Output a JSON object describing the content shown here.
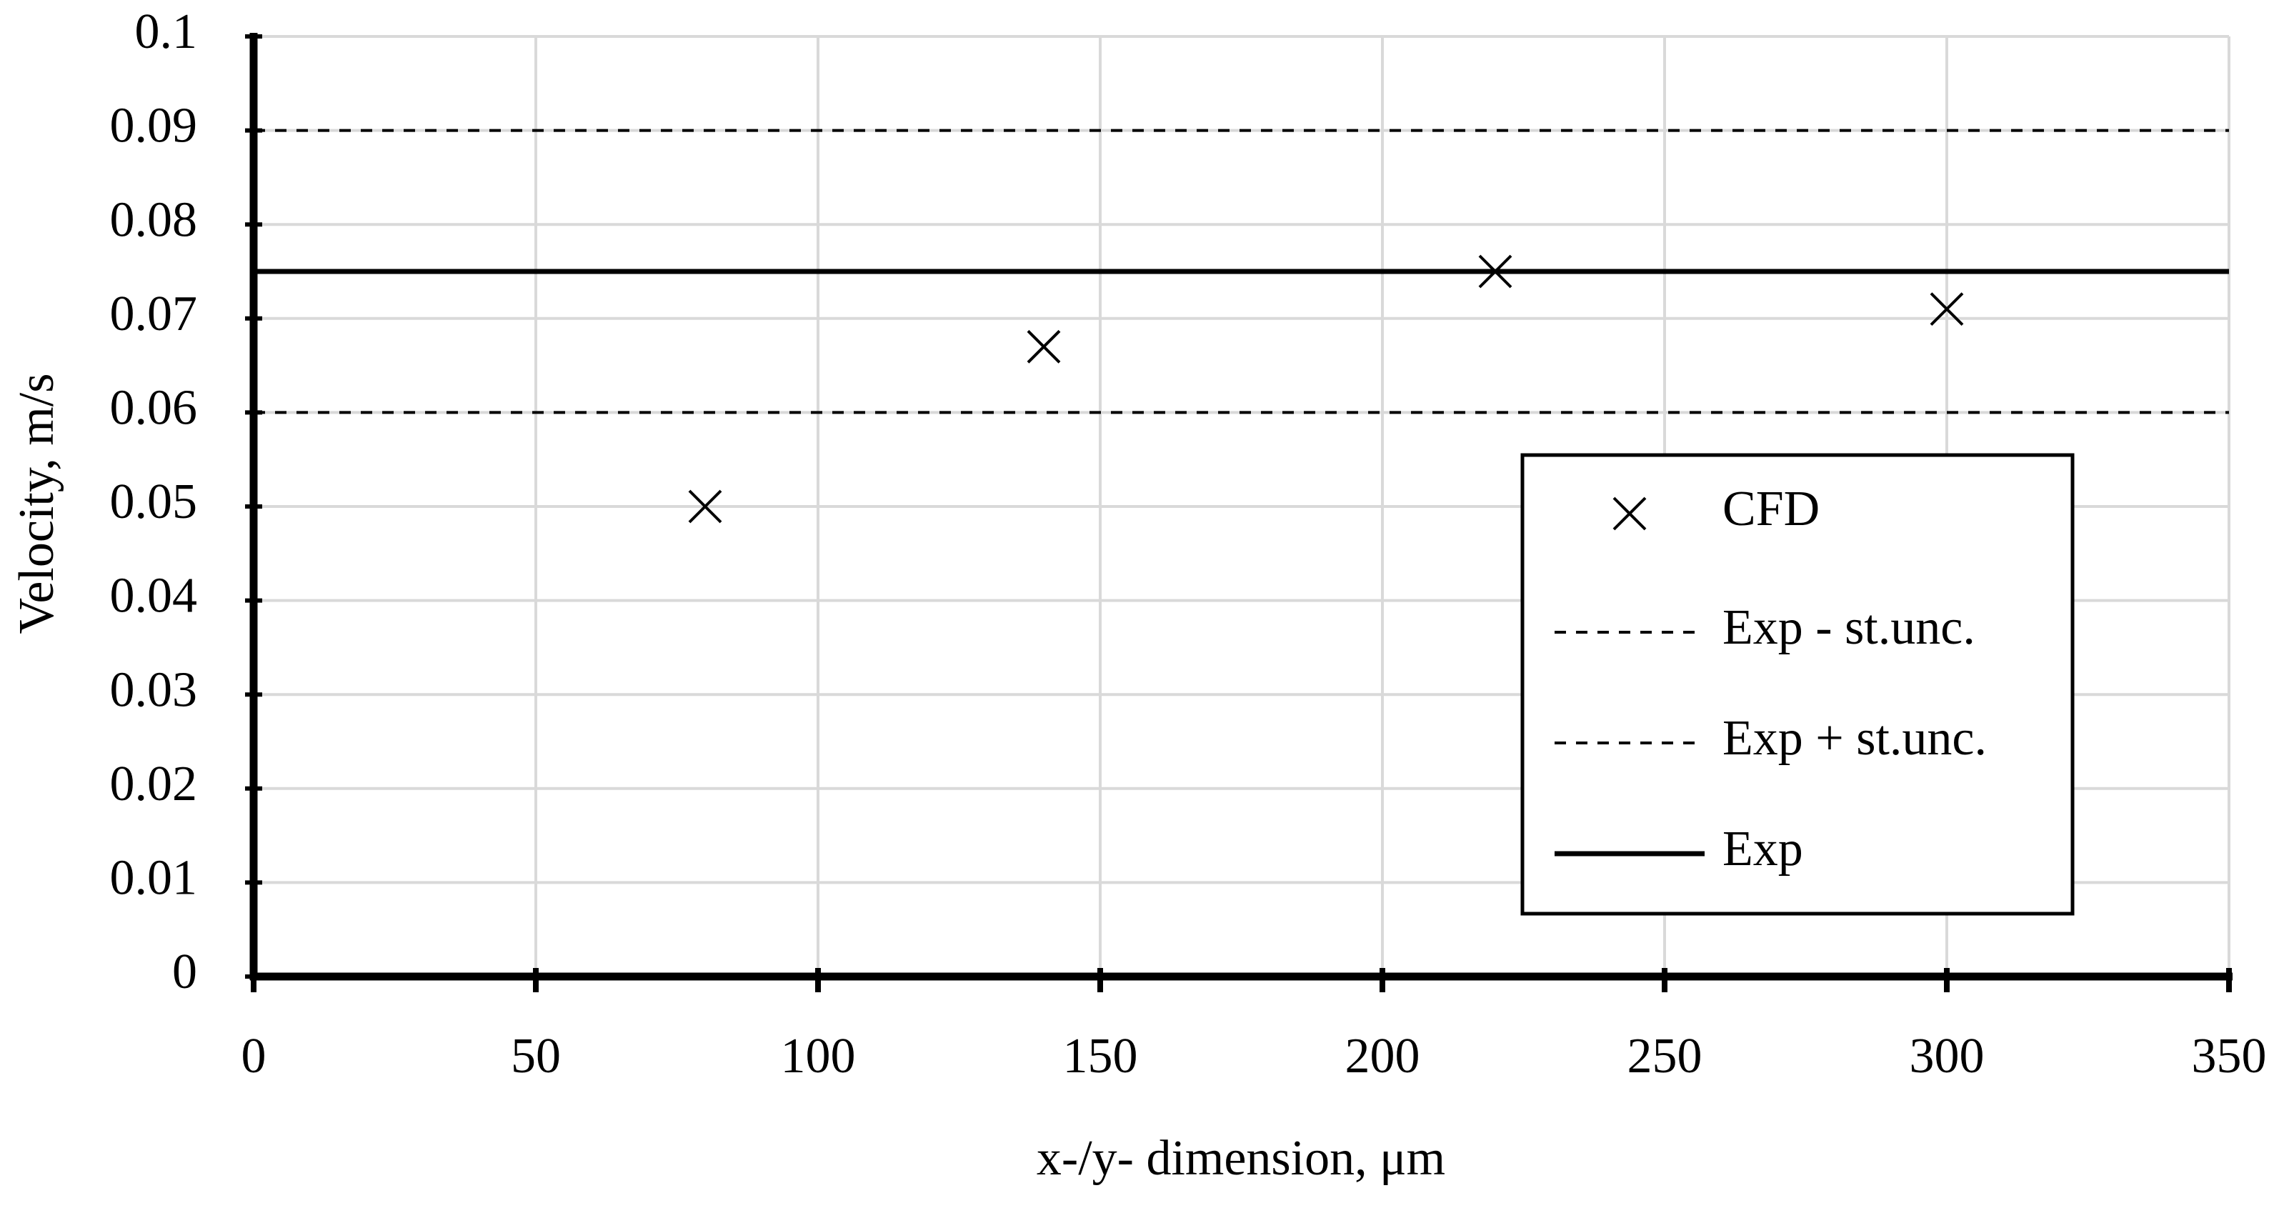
{
  "chart_data": {
    "type": "scatter",
    "x_label": "x-/y- dimension, μm",
    "y_label": "Velocity, m/s",
    "xlim": [
      0,
      350
    ],
    "xticks": [
      0,
      50,
      100,
      150,
      200,
      250,
      300,
      350
    ],
    "ylim": [
      0,
      0.1
    ],
    "yticks": [
      0,
      0.01,
      0.02,
      0.03,
      0.04,
      0.05,
      0.06,
      0.07,
      0.08,
      0.09,
      0.1
    ],
    "grid": true,
    "legend": "right",
    "series": [
      {
        "name": "CFD",
        "color": "#000000",
        "marker": "x",
        "x": [
          80,
          140,
          220,
          300
        ],
        "values": [
          0.05,
          0.067,
          0.075,
          0.071
        ]
      },
      {
        "name": "Exp - st.unc.",
        "color": "#000000",
        "line_style": "dashed",
        "x": [
          0,
          350
        ],
        "values": [
          0.06,
          0.06
        ]
      },
      {
        "name": "Exp + st.unc.",
        "color": "#000000",
        "line_style": "dashed",
        "x": [
          0,
          350
        ],
        "values": [
          0.09,
          0.09
        ]
      },
      {
        "name": "Exp",
        "color": "#000000",
        "line_style": "solid",
        "x": [
          0,
          350
        ],
        "values": [
          0.075,
          0.075
        ]
      }
    ]
  }
}
